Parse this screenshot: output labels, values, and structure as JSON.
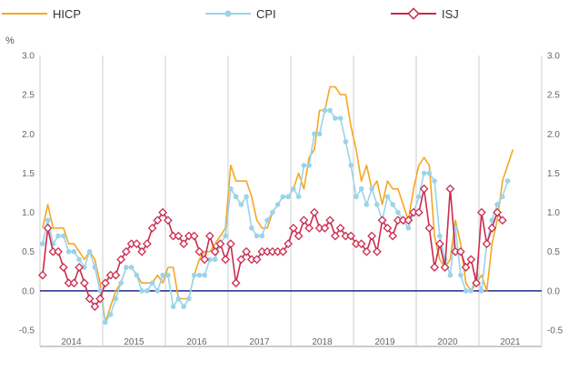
{
  "chart_data": {
    "type": "line",
    "unit_label": "%",
    "ylim": [
      -0.5,
      3.0
    ],
    "yticks": [
      "3.0",
      "2.5",
      "2.0",
      "1.5",
      "1.0",
      "0.5",
      "0.0",
      "-0.5"
    ],
    "year_labels": [
      "2014",
      "2015",
      "2016",
      "2017",
      "2018",
      "2019",
      "2020",
      "2021"
    ],
    "x_start": "2014-01",
    "grid": "vertical year separators",
    "zero_line_color": "#1f2a8c",
    "series": [
      {
        "name": "HICP",
        "color": "#f5a623",
        "marker": "none",
        "values": [
          0.8,
          1.1,
          0.8,
          0.8,
          0.8,
          0.6,
          0.6,
          0.5,
          0.4,
          0.5,
          0.4,
          0.1,
          -0.4,
          -0.2,
          0.0,
          0.1,
          0.3,
          0.3,
          0.2,
          0.1,
          0.1,
          0.1,
          0.2,
          0.1,
          0.3,
          0.3,
          -0.1,
          -0.1,
          -0.1,
          0.2,
          0.4,
          0.5,
          0.5,
          0.6,
          0.7,
          0.8,
          1.6,
          1.4,
          1.4,
          1.4,
          1.2,
          0.9,
          0.8,
          0.8,
          1.0,
          1.1,
          1.2,
          1.2,
          1.3,
          1.5,
          1.3,
          1.7,
          1.8,
          2.3,
          2.3,
          2.6,
          2.6,
          2.5,
          2.5,
          2.1,
          1.8,
          1.4,
          1.6,
          1.3,
          1.4,
          1.1,
          1.4,
          1.3,
          1.3,
          1.1,
          0.9,
          1.3,
          1.6,
          1.7,
          1.6,
          0.7,
          0.4,
          0.3,
          0.4,
          0.9,
          0.6,
          0.1,
          0.0,
          0.1,
          0.2,
          0.0,
          0.6,
          0.9,
          1.4,
          1.6,
          1.8
        ]
      },
      {
        "name": "CPI",
        "color": "#9ad4ea",
        "marker": "circle",
        "values": [
          0.6,
          0.9,
          0.6,
          0.7,
          0.7,
          0.5,
          0.5,
          0.4,
          0.3,
          0.5,
          0.3,
          0.0,
          -0.4,
          -0.3,
          -0.1,
          0.1,
          0.3,
          0.3,
          0.2,
          0.0,
          0.0,
          0.1,
          0.0,
          0.2,
          0.2,
          -0.2,
          -0.1,
          -0.2,
          -0.1,
          0.2,
          0.2,
          0.2,
          0.4,
          0.4,
          0.6,
          0.7,
          1.3,
          1.2,
          1.1,
          1.2,
          0.8,
          0.7,
          0.7,
          0.9,
          1.0,
          1.1,
          1.2,
          1.2,
          1.3,
          1.2,
          1.6,
          1.6,
          2.0,
          2.0,
          2.3,
          2.3,
          2.2,
          2.2,
          1.9,
          1.6,
          1.2,
          1.3,
          1.1,
          1.3,
          1.1,
          0.9,
          1.2,
          1.1,
          1.0,
          0.9,
          0.8,
          1.0,
          1.2,
          1.5,
          1.5,
          1.4,
          0.7,
          0.4,
          0.2,
          0.8,
          0.2,
          0.0,
          0.0,
          0.2,
          0.0,
          0.6,
          0.9,
          1.1,
          1.2,
          1.4
        ]
      },
      {
        "name": "ISJ",
        "color": "#cc2a4e",
        "marker": "diamond",
        "values": [
          0.2,
          0.8,
          0.5,
          0.5,
          0.3,
          0.1,
          0.1,
          0.3,
          0.1,
          -0.1,
          -0.2,
          -0.1,
          0.1,
          0.2,
          0.2,
          0.4,
          0.5,
          0.6,
          0.6,
          0.5,
          0.6,
          0.8,
          0.9,
          1.0,
          0.9,
          0.7,
          0.7,
          0.6,
          0.7,
          0.7,
          0.5,
          0.4,
          0.7,
          0.5,
          0.6,
          0.4,
          0.6,
          0.1,
          0.4,
          0.5,
          0.4,
          0.4,
          0.5,
          0.5,
          0.5,
          0.5,
          0.5,
          0.6,
          0.8,
          0.7,
          0.9,
          0.8,
          1.0,
          0.8,
          0.8,
          0.9,
          0.7,
          0.8,
          0.7,
          0.7,
          0.6,
          0.6,
          0.5,
          0.7,
          0.5,
          0.9,
          0.8,
          0.7,
          0.9,
          0.9,
          0.9,
          1.0,
          1.0,
          1.3,
          0.8,
          0.3,
          0.6,
          0.3,
          1.3,
          0.5,
          0.5,
          0.3,
          0.4,
          0.1,
          1.0,
          0.6,
          0.8,
          1.0,
          0.9
        ]
      }
    ]
  }
}
